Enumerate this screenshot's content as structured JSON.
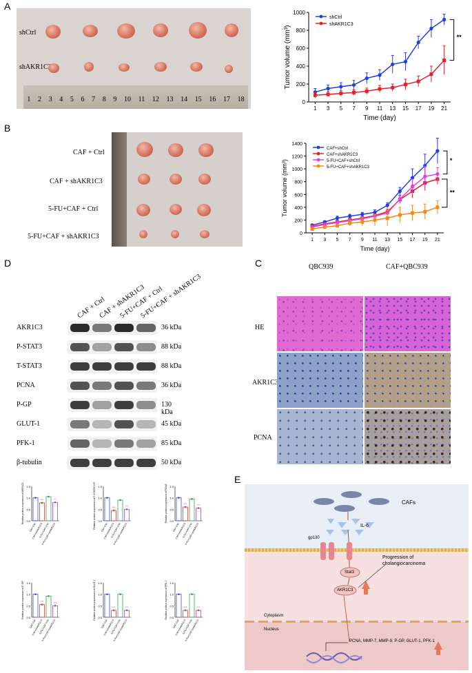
{
  "panels": {
    "A": "A",
    "B": "B",
    "C": "C",
    "D": "D",
    "E": "E"
  },
  "A": {
    "rows": [
      "shCtrl",
      "shAKR1C3"
    ],
    "ruler_numbers": [
      "1",
      "2",
      "3",
      "4",
      "5",
      "6",
      "7",
      "8",
      "9",
      "10",
      "11",
      "12",
      "13",
      "14",
      "15",
      "16",
      "17",
      "18"
    ]
  },
  "B": {
    "rows": [
      "CAF + Ctrl",
      "CAF + shAKR1C3",
      "5-FU+CAF + Ctrl",
      "5-FU+CAF + shAKR1C3"
    ]
  },
  "C": {
    "cols": [
      "QBC939",
      "CAF+QBC939"
    ],
    "rows": [
      "HE",
      "AKR1C3",
      "PCNA"
    ]
  },
  "D": {
    "lanes": [
      "CAF + Ctrl",
      "CAF + shAKR1C3",
      "5-FU+CAF + Ctrl",
      "5-FU+CAF + shAKR1C3"
    ],
    "proteins": [
      "AKR1C3",
      "P-STAT3",
      "T-STAT3",
      "PCNA",
      "P-GP",
      "GLUT-1",
      "PFK-1",
      "β-tubulin"
    ],
    "kda": [
      "36 kDa",
      "88 kDa",
      "88 kDa",
      "36 kDa",
      "130 kDa",
      "45 kDa",
      "85 kDa",
      "50 kDa"
    ],
    "bar_ylabels": [
      "Relative protein expression of AKR1C3",
      "Relative protein expression of P-STAT3/T-STAT3",
      "Relative protein expression of PCNA",
      "Relative protein expression of P-GP",
      "Relative protein expression of GLUT-1",
      "Relative protein expression of PFK-1"
    ],
    "bar_categories": [
      "CAF+Ctrl",
      "CAF+shAKR1C3",
      "5-FU+CAF+Ctrl",
      "5-FU+CAF+shAKR1C3"
    ],
    "bar_values": [
      [
        1.0,
        0.78,
        1.05,
        0.8
      ],
      [
        1.0,
        0.45,
        0.9,
        0.5
      ],
      [
        1.0,
        0.6,
        0.95,
        0.55
      ],
      [
        1.0,
        0.55,
        0.92,
        0.5
      ],
      [
        1.0,
        0.3,
        1.0,
        0.3
      ],
      [
        1.0,
        0.3,
        1.0,
        0.3
      ]
    ],
    "bar_sig": [
      [
        "",
        "***",
        "*",
        "**"
      ],
      [
        "",
        "***",
        "",
        "***"
      ],
      [
        "",
        "***",
        "",
        "***"
      ],
      [
        "",
        "***",
        "",
        "***"
      ],
      [
        "",
        "***",
        "",
        "***"
      ],
      [
        "",
        "***",
        "",
        "***"
      ]
    ],
    "bar_ticks": [
      "0.0",
      "0.5",
      "1.0",
      "1.5"
    ],
    "bar_colors": [
      "#3a50d0",
      "#e0363a",
      "#2aa84a",
      "#b040d8"
    ]
  },
  "E": {
    "cafs": "CAFs",
    "il6": "IL-6",
    "gp130": "gp130",
    "stat3": "Stat3",
    "akr": "AKR1C3",
    "progression": "Progression of cholangiocarcinoma",
    "cytoplasm": "Cytoplasm",
    "nucleus": "Nucleus",
    "genes": "PCNA, MMP-7, MMP-9, P-GP, GLUT-1, PFK-1"
  },
  "chart_data": [
    {
      "type": "line",
      "title": "",
      "xlabel": "Time (day)",
      "ylabel": "Tumor volume (mm³)",
      "x": [
        1,
        3,
        5,
        7,
        9,
        11,
        13,
        15,
        17,
        19,
        21
      ],
      "xlim": [
        0,
        22
      ],
      "ylim": [
        0,
        1000
      ],
      "yticks": [
        "0",
        "200",
        "400",
        "600",
        "800",
        "1000"
      ],
      "significance": "**",
      "series": [
        {
          "name": "shCtrl",
          "color": "#1f3fe0",
          "values": [
            110,
            150,
            170,
            190,
            265,
            300,
            420,
            450,
            665,
            820,
            920
          ],
          "errors": [
            40,
            40,
            45,
            50,
            60,
            60,
            100,
            100,
            70,
            100,
            60
          ]
        },
        {
          "name": "shAKR1C3",
          "color": "#e0202a",
          "values": [
            75,
            85,
            95,
            105,
            120,
            145,
            160,
            195,
            230,
            310,
            465
          ],
          "errors": [
            30,
            30,
            30,
            30,
            35,
            40,
            40,
            60,
            60,
            90,
            160
          ]
        }
      ]
    },
    {
      "type": "line",
      "title": "",
      "xlabel": "Time (day)",
      "ylabel": "Tumor volume (mm³)",
      "x": [
        1,
        3,
        5,
        7,
        9,
        11,
        13,
        15,
        17,
        19,
        21
      ],
      "xlim": [
        0,
        22
      ],
      "ylim": [
        0,
        1400
      ],
      "yticks": [
        "0",
        "200",
        "400",
        "600",
        "800",
        "1000",
        "1200",
        "1400"
      ],
      "significance": [
        "*",
        "**"
      ],
      "series": [
        {
          "name": "CAF+shCtrl",
          "color": "#1f3fe0",
          "values": [
            120,
            170,
            230,
            260,
            290,
            320,
            430,
            650,
            860,
            1050,
            1280
          ],
          "errors": [
            20,
            20,
            30,
            30,
            30,
            40,
            40,
            60,
            140,
            180,
            200
          ]
        },
        {
          "name": "CAF+shAKR1C3",
          "color": "#e0202a",
          "values": [
            100,
            140,
            170,
            200,
            230,
            270,
            330,
            520,
            650,
            780,
            840
          ],
          "errors": [
            20,
            20,
            30,
            30,
            30,
            30,
            40,
            60,
            100,
            120,
            80
          ]
        },
        {
          "name": "5-FU+CAF+shCtrl",
          "color": "#e040e0",
          "values": [
            90,
            130,
            160,
            190,
            220,
            260,
            310,
            530,
            720,
            880,
            920
          ],
          "errors": [
            20,
            20,
            30,
            30,
            30,
            30,
            40,
            60,
            120,
            160,
            100
          ]
        },
        {
          "name": "5-FU+CAF+shAKR1C3",
          "color": "#f08a1a",
          "values": [
            60,
            90,
            110,
            150,
            170,
            200,
            230,
            280,
            310,
            330,
            400
          ],
          "errors": [
            20,
            20,
            30,
            40,
            60,
            90,
            120,
            120,
            120,
            120,
            100
          ]
        }
      ]
    }
  ]
}
